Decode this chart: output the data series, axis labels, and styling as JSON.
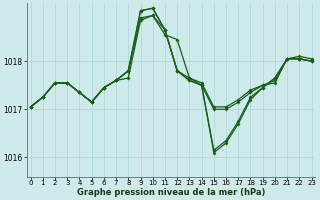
{
  "title": "Graphe pression niveau de la mer (hPa)",
  "bg_color": "#ceeaea",
  "grid_color": "#b0d8d8",
  "line_color": "#1a5c1a",
  "x_ticks": [
    0,
    1,
    2,
    3,
    4,
    5,
    6,
    7,
    8,
    9,
    10,
    11,
    12,
    13,
    14,
    15,
    16,
    17,
    18,
    19,
    20,
    21,
    22,
    23
  ],
  "y_ticks": [
    1016,
    1017,
    1018
  ],
  "ylim": [
    1015.6,
    1019.2
  ],
  "xlim": [
    -0.3,
    23.3
  ],
  "series1": [
    1017.05,
    1017.25,
    1017.55,
    1017.55,
    1017.35,
    1017.15,
    1017.45,
    1017.6,
    1017.65,
    1018.85,
    1018.95,
    1018.55,
    1018.45,
    1017.65,
    1017.55,
    1017.05,
    1017.05,
    1017.2,
    1017.4,
    1017.5,
    1017.55,
    1018.05,
    1018.05,
    1018.0
  ],
  "series2": [
    1017.05,
    1017.25,
    1017.55,
    1017.55,
    1017.35,
    1017.15,
    1017.45,
    1017.6,
    1017.8,
    1019.05,
    1019.1,
    1018.65,
    1017.8,
    1017.6,
    1017.5,
    1017.0,
    1017.0,
    1017.15,
    1017.35,
    1017.5,
    1017.6,
    1018.05,
    1018.05,
    1018.0
  ],
  "series3": [
    1017.05,
    1017.25,
    1017.55,
    1017.55,
    1017.35,
    1017.15,
    1017.45,
    1017.6,
    1017.8,
    1019.05,
    1019.1,
    1018.65,
    1017.8,
    1017.65,
    1017.5,
    1016.15,
    1016.35,
    1016.75,
    1017.25,
    1017.45,
    1017.65,
    1018.05,
    1018.1,
    1018.05
  ],
  "series4": [
    1017.05,
    1017.25,
    1017.55,
    1017.55,
    1017.35,
    1017.15,
    1017.45,
    1017.6,
    1017.8,
    1018.9,
    1018.95,
    1018.65,
    1017.8,
    1017.6,
    1017.5,
    1016.1,
    1016.3,
    1016.7,
    1017.2,
    1017.45,
    1017.65,
    1018.05,
    1018.05,
    1018.0
  ],
  "markersize": 2.0,
  "linewidth": 0.9
}
